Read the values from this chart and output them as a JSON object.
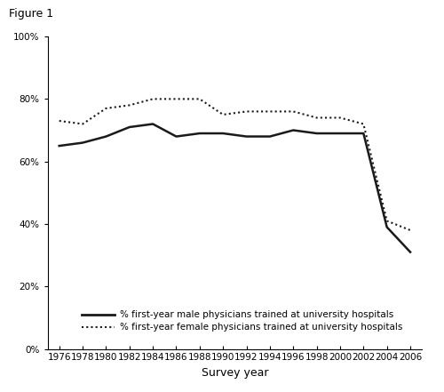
{
  "years": [
    1976,
    1978,
    1980,
    1982,
    1984,
    1986,
    1988,
    1990,
    1992,
    1994,
    1996,
    1998,
    2000,
    2002,
    2004,
    2006
  ],
  "male": [
    0.65,
    0.66,
    0.68,
    0.71,
    0.72,
    0.68,
    0.69,
    0.69,
    0.68,
    0.68,
    0.7,
    0.69,
    0.69,
    0.69,
    0.39,
    0.31
  ],
  "female": [
    0.73,
    0.72,
    0.77,
    0.78,
    0.8,
    0.8,
    0.8,
    0.75,
    0.76,
    0.76,
    0.76,
    0.74,
    0.74,
    0.72,
    0.41,
    0.38
  ],
  "male_label": "% first-year male physicians trained at university hospitals",
  "female_label": "% first-year female physicians trained at university hospitals",
  "xlabel": "Survey year",
  "figure_title": "Figure 1",
  "ylim": [
    0.0,
    1.0
  ],
  "yticks": [
    0.0,
    0.2,
    0.4,
    0.6,
    0.8,
    1.0
  ],
  "ytick_labels": [
    "0%",
    "20%",
    "40%",
    "60%",
    "80%",
    "100%"
  ],
  "line_color": "#1a1a1a",
  "background_color": "#ffffff",
  "tick_fontsize": 7.5,
  "xlabel_fontsize": 9,
  "legend_fontsize": 7.5,
  "title_fontsize": 9
}
